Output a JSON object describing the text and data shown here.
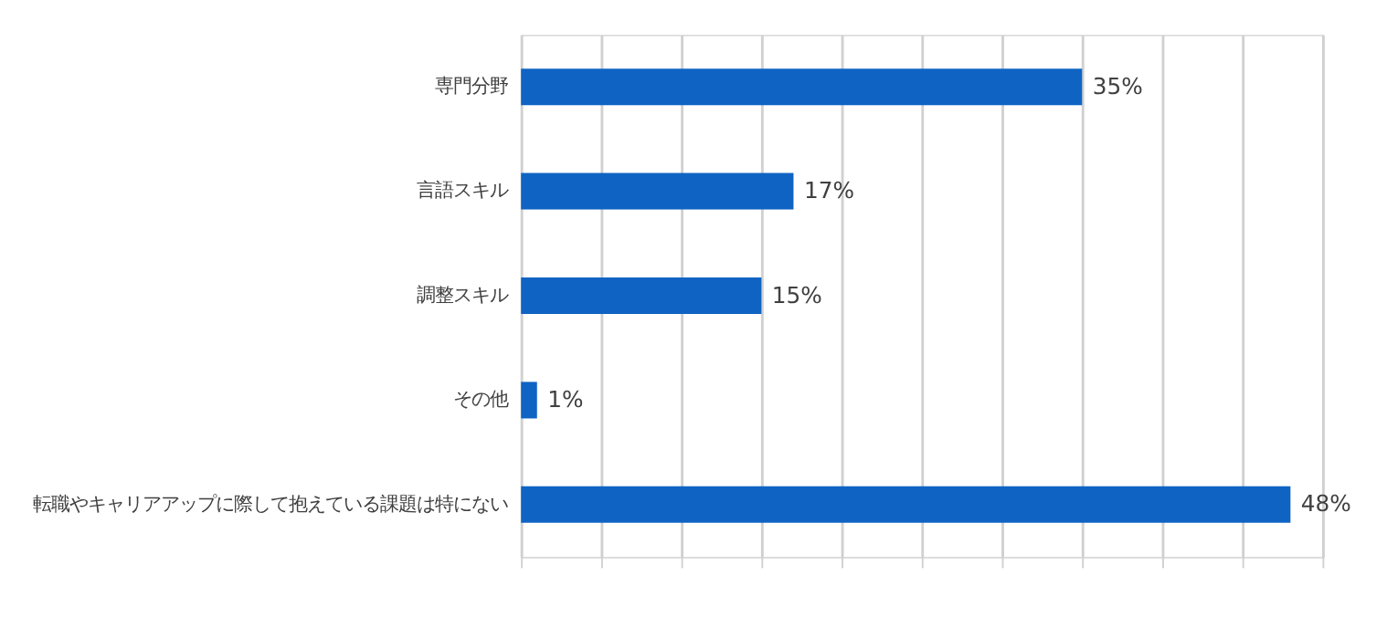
{
  "chart_data": {
    "type": "bar",
    "orientation": "horizontal",
    "categories": [
      "専門分野",
      "言語スキル",
      "調整スキル",
      "その他",
      "転職やキャリアアップに際して抱えている課題は特にない"
    ],
    "values": [
      35,
      17,
      15,
      1,
      48
    ],
    "color": "#0f64c3",
    "value_labels": [
      "35%",
      "17%",
      "15%",
      "1%",
      "48%"
    ],
    "xlim": [
      0,
      50
    ],
    "xticks": [
      {
        "value": 0,
        "label": null
      },
      {
        "value": 5,
        "label": null
      },
      {
        "value": 10,
        "label": null
      },
      {
        "value": 15,
        "label": null
      },
      {
        "value": 20,
        "label": null
      },
      {
        "value": 25,
        "label": null
      },
      {
        "value": 30,
        "label": null
      },
      {
        "value": 35,
        "label": null
      },
      {
        "value": 40,
        "label": null
      },
      {
        "value": 45,
        "label": null
      },
      {
        "value": 50,
        "label": null
      }
    ],
    "grid": "x",
    "tick_labels": "y"
  }
}
